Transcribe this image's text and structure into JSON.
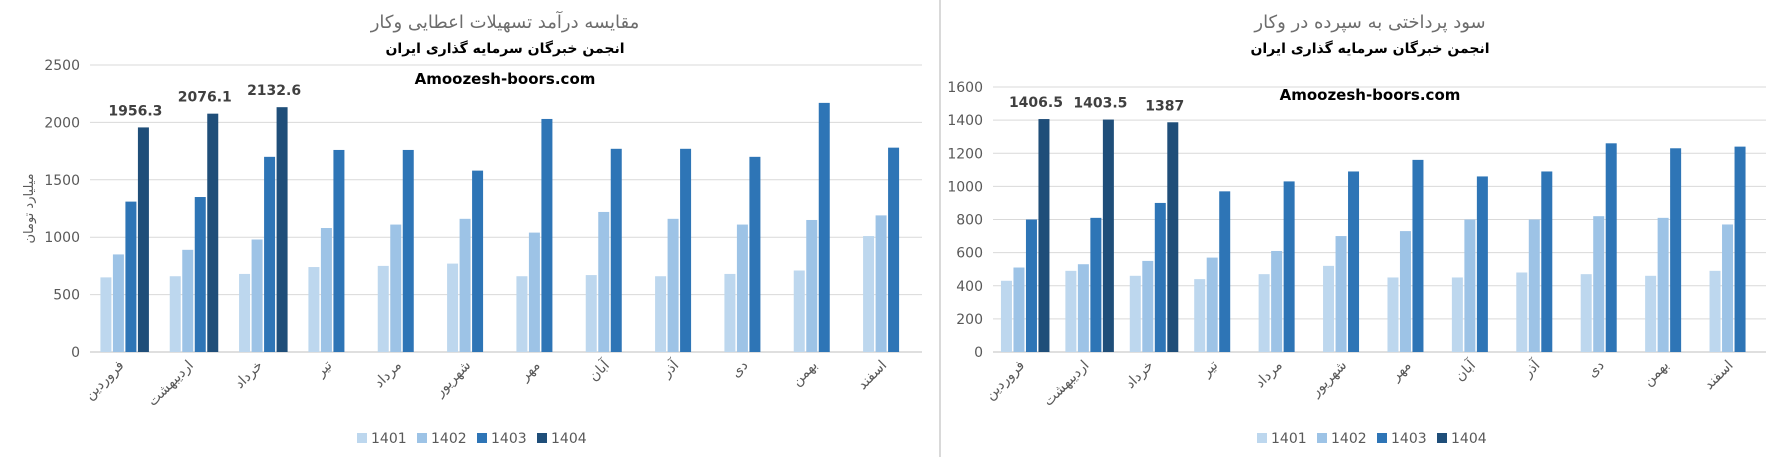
{
  "chart_data": [
    {
      "type": "bar",
      "title": "مقایسه درآمد تسهیلات اعطایی وکار",
      "subtitle": "انجمن خبرگان سرمایه گذاری ایران",
      "source": "Amoozesh-boors.com",
      "xlabel": "",
      "ylabel": "میلیارد تومان",
      "ylim": [
        0,
        2500
      ],
      "yticks": [
        0,
        500,
        1000,
        1500,
        2000,
        2500
      ],
      "grid": true,
      "legend_position": "bottom",
      "categories": [
        "فروردین",
        "اردیبهشت",
        "خرداد",
        "تیر",
        "مرداد",
        "شهریور",
        "مهر",
        "آبان",
        "آذر",
        "دی",
        "بهمن",
        "اسفند"
      ],
      "series": [
        {
          "name": "1401",
          "color": "#bdd7ee",
          "values": [
            650,
            660,
            680,
            740,
            750,
            770,
            660,
            670,
            660,
            680,
            710,
            1010
          ]
        },
        {
          "name": "1402",
          "color": "#9dc3e6",
          "values": [
            850,
            890,
            980,
            1080,
            1110,
            1160,
            1040,
            1220,
            1160,
            1110,
            1150,
            1190
          ]
        },
        {
          "name": "1403",
          "color": "#2e75b6",
          "values": [
            1310,
            1350,
            1700,
            1760,
            1760,
            1580,
            2030,
            1770,
            1770,
            1700,
            2170,
            1780
          ]
        },
        {
          "name": "1404",
          "color": "#1f4e79",
          "values": [
            1956.3,
            2076.1,
            2132.6,
            null,
            null,
            null,
            null,
            null,
            null,
            null,
            null,
            null
          ]
        }
      ],
      "data_labels": [
        "1956.3",
        "2076.1",
        "2132.6"
      ]
    },
    {
      "type": "bar",
      "title": "سود پرداختی به سپرده در وکار",
      "subtitle": "انجمن خبرگان سرمایه گذاری ایران",
      "source": "Amoozesh-boors.com",
      "xlabel": "",
      "ylabel": "",
      "ylim": [
        0,
        1600
      ],
      "yticks": [
        0,
        200,
        400,
        600,
        800,
        1000,
        1200,
        1400,
        1600
      ],
      "grid": true,
      "legend_position": "bottom",
      "categories": [
        "فروردین",
        "اردیبهشت",
        "خرداد",
        "تیر",
        "مرداد",
        "شهریور",
        "مهر",
        "آبان",
        "آذر",
        "دی",
        "بهمن",
        "اسفند"
      ],
      "series": [
        {
          "name": "1401",
          "color": "#bdd7ee",
          "values": [
            430,
            490,
            460,
            440,
            470,
            520,
            450,
            450,
            480,
            470,
            460,
            490
          ]
        },
        {
          "name": "1402",
          "color": "#9dc3e6",
          "values": [
            510,
            530,
            550,
            570,
            610,
            700,
            730,
            800,
            800,
            820,
            810,
            770
          ]
        },
        {
          "name": "1403",
          "color": "#2e75b6",
          "values": [
            800,
            810,
            900,
            970,
            1030,
            1090,
            1160,
            1060,
            1090,
            1260,
            1230,
            1240
          ]
        },
        {
          "name": "1404",
          "color": "#1f4e79",
          "values": [
            1406.5,
            1403.5,
            1387,
            null,
            null,
            null,
            null,
            null,
            null,
            null,
            null,
            null
          ]
        }
      ],
      "data_labels": [
        "1406.5",
        "1403.5",
        "1387"
      ]
    }
  ]
}
